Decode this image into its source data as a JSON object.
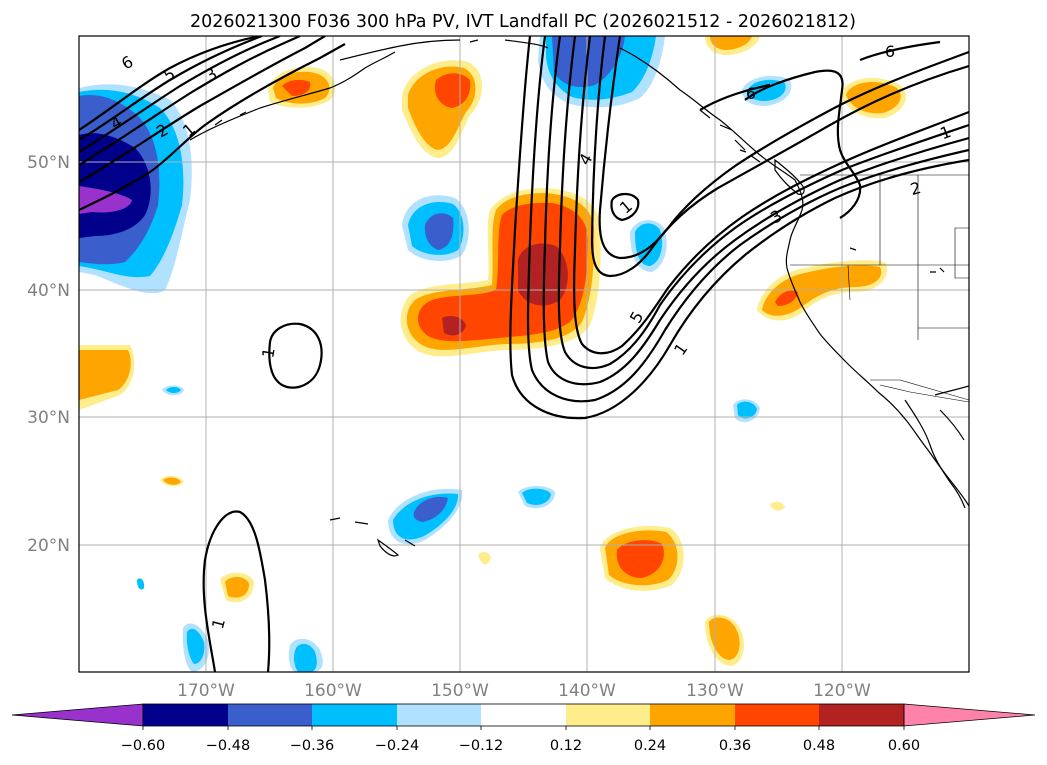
{
  "title": "2026021300 F036 300 hPa PV, IVT Landfall PC (2026021512 - 2026021812)",
  "map": {
    "lat_labels": [
      "50°N",
      "40°N",
      "30°N",
      "20°N"
    ],
    "lon_labels": [
      "170°W",
      "160°W",
      "150°W",
      "140°W",
      "130°W",
      "120°W"
    ],
    "contour_labels": [
      "6",
      "5",
      "4",
      "3",
      "2",
      "1",
      "4",
      "5",
      "1",
      "3",
      "2",
      "1",
      "6",
      "6",
      "1",
      "1",
      "1"
    ],
    "colors": {
      "c_neg_060": "#9932cc",
      "c_neg_048": "#00008b",
      "c_neg_036": "#3a5fcd",
      "c_neg_024": "#00bfff",
      "c_neg_012": "#b0e2ff",
      "c_pos_012": "#ffec8b",
      "c_pos_024": "#ffa500",
      "c_pos_036": "#ff4500",
      "c_pos_048": "#b22222",
      "c_pos_060": "#ff82ab"
    }
  },
  "colorbar": {
    "ticks": [
      "−0.60",
      "−0.48",
      "−0.36",
      "−0.24",
      "−0.12",
      "0.12",
      "0.24",
      "0.36",
      "0.48",
      "0.60"
    ],
    "segment_colors": [
      "#9932cc",
      "#00008b",
      "#3a5fcd",
      "#00bfff",
      "#b0e2ff",
      "#ffffff",
      "#ffec8b",
      "#ffa500",
      "#ff4500",
      "#b22222",
      "#ff82ab"
    ]
  }
}
